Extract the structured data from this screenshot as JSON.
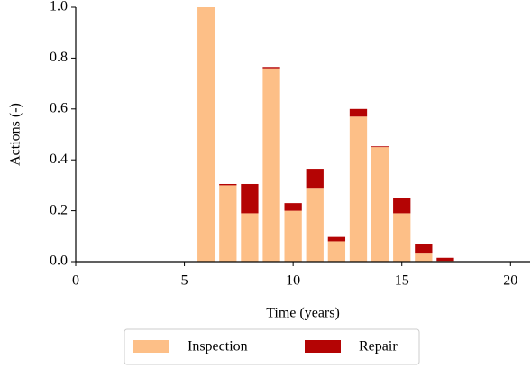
{
  "chart_data": {
    "type": "stacked_bar",
    "x_label": "Time (years)",
    "y_label": "Actions (-)",
    "x": [
      6,
      7,
      8,
      9,
      10,
      11,
      12,
      13,
      14,
      15,
      16,
      17
    ],
    "series": [
      {
        "name": "Inspection",
        "color": "#fdbf87",
        "values": [
          1.0,
          0.3,
          0.19,
          0.76,
          0.2,
          0.29,
          0.08,
          0.57,
          0.45,
          0.19,
          0.035,
          0.003
        ]
      },
      {
        "name": "Repair",
        "color": "#b40404",
        "values": [
          0,
          0.005,
          0.115,
          0.005,
          0.03,
          0.075,
          0.017,
          0.03,
          0.003,
          0.06,
          0.035,
          0.012
        ]
      }
    ],
    "xlim": [
      0,
      20.9
    ],
    "ylim": [
      0,
      1.0
    ],
    "xticks": [
      0,
      5,
      10,
      15,
      20
    ],
    "yticks": [
      {
        "value": 0,
        "label": "0.0"
      },
      0.2,
      0.4,
      0.6,
      0.8,
      {
        "value": 1,
        "label": "1.0"
      }
    ],
    "legend": "bottom"
  }
}
